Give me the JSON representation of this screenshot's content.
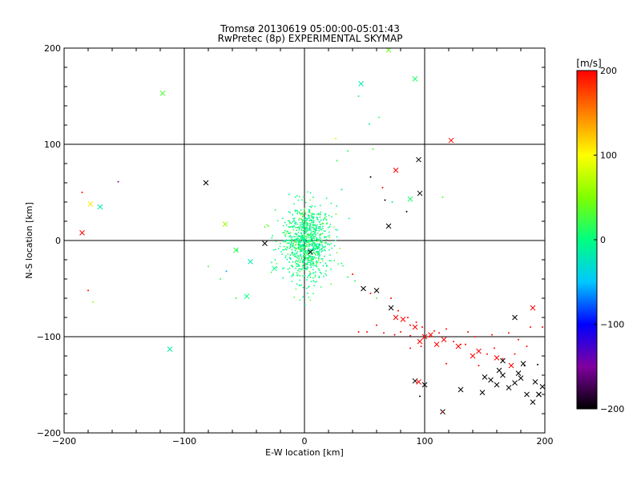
{
  "chart_data": {
    "type": "scatter",
    "title_line1": "Tromsø 20130619 05:00:00-05:01:43",
    "title_line2": "RwPretec (8p) EXPERIMENTAL SKYMAP",
    "xlabel": "E-W location [km]",
    "ylabel": "N-S location [km]",
    "xlim": [
      -200,
      200
    ],
    "ylim": [
      -200,
      200
    ],
    "xticks": [
      -200,
      -100,
      0,
      100,
      200
    ],
    "yticks": [
      -200,
      -100,
      0,
      100,
      200
    ],
    "xtick_labels": [
      "−200",
      "−100",
      "0",
      "100",
      "200"
    ],
    "ytick_labels": [
      "−200",
      "−100",
      "0",
      "100",
      "200"
    ],
    "grid": true,
    "colorbar": {
      "label": "[m/s]",
      "range": [
        -200,
        200
      ],
      "ticks": [
        200,
        100,
        0,
        -100,
        -200
      ],
      "tick_labels": [
        "200",
        "100",
        "0",
        "−100",
        "−200"
      ],
      "colors": [
        "#000000",
        "#8000a0",
        "#0000ff",
        "#00c8ff",
        "#00ff80",
        "#80ff00",
        "#ffff00",
        "#ff8000",
        "#ff0000"
      ]
    },
    "series": [
      {
        "marker": "x",
        "x": [
          -118,
          47,
          70,
          92,
          122,
          -185,
          -170,
          -178,
          -82,
          -112,
          -66,
          -45,
          -33,
          -57,
          -48,
          -25,
          5,
          76,
          96,
          95,
          70,
          88,
          49,
          60,
          72,
          76,
          82,
          92,
          100,
          96,
          110,
          128,
          145,
          160,
          172,
          192,
          105,
          116,
          140,
          165,
          182,
          198,
          150,
          155,
          160,
          165,
          170,
          175,
          180,
          185,
          190,
          195,
          175,
          190,
          92,
          95,
          115,
          100,
          130,
          148,
          162,
          178,
          195
        ],
        "y": [
          153,
          163,
          198,
          168,
          104,
          8,
          35,
          38,
          60,
          -113,
          17,
          -22,
          -3,
          -10,
          -58,
          -29,
          -12,
          73,
          49,
          84,
          15,
          43,
          -50,
          -52,
          -70,
          -80,
          -82,
          -90,
          -100,
          -105,
          -108,
          -110,
          -115,
          -122,
          -130,
          -147,
          -98,
          -103,
          -120,
          -125,
          -128,
          -152,
          -142,
          -145,
          -150,
          -140,
          -153,
          -148,
          -143,
          -160,
          -168,
          -160,
          -80,
          -70,
          -146,
          -147,
          -178,
          -150,
          -155,
          -158,
          -135,
          -138,
          -160
        ],
        "v": [
          30,
          -20,
          40,
          10,
          200,
          200,
          -20,
          110,
          -200,
          -10,
          60,
          -20,
          -200,
          20,
          0,
          0,
          -200,
          200,
          -200,
          -200,
          -200,
          10,
          -200,
          -200,
          -200,
          200,
          200,
          200,
          200,
          200,
          200,
          200,
          200,
          200,
          200,
          -200,
          200,
          200,
          200,
          -200,
          -200,
          -200,
          -200,
          -200,
          -200,
          -200,
          -200,
          -200,
          -200,
          -200,
          -200,
          -200,
          -200,
          200,
          -200,
          200,
          -200,
          -200,
          -200,
          -200,
          -200,
          -200,
          -200
        ]
      },
      {
        "marker": "dot",
        "x": [
          -185,
          -155,
          -180,
          -176,
          45,
          54,
          62,
          57,
          36,
          26,
          31,
          27,
          55,
          65,
          67,
          73,
          85,
          115,
          -80,
          -70,
          -65,
          -57,
          -56,
          -33,
          -30,
          40,
          36,
          42,
          55,
          60,
          72,
          78,
          86,
          88,
          93,
          98,
          104,
          108,
          112,
          118,
          124,
          134,
          142,
          152,
          158,
          165,
          175,
          183,
          194,
          198,
          97,
          88,
          118,
          130,
          145,
          170,
          185,
          45,
          52,
          60,
          66,
          75,
          80,
          88,
          136,
          156,
          178,
          188,
          96,
          115
        ],
        "y": [
          50,
          61,
          -52,
          -64,
          150,
          121,
          128,
          95,
          93,
          106,
          53,
          83,
          66,
          55,
          42,
          40,
          30,
          45,
          -27,
          -40,
          -32,
          -60,
          -10,
          14,
          15,
          -35,
          -38,
          -42,
          -55,
          -60,
          -60,
          -73,
          -80,
          -88,
          -85,
          -90,
          -100,
          -94,
          -96,
          -92,
          -105,
          -108,
          -100,
          -118,
          -112,
          -123,
          -118,
          -130,
          -129,
          -90,
          -110,
          -112,
          -128,
          -108,
          -130,
          -96,
          -110,
          -95,
          -95,
          -88,
          -96,
          -98,
          -95,
          -99,
          -95,
          -98,
          -103,
          -90,
          -162,
          -178
        ],
        "v": [
          200,
          -150,
          200,
          60,
          10,
          0,
          20,
          30,
          10,
          80,
          -20,
          20,
          -200,
          200,
          -200,
          -20,
          -200,
          30,
          20,
          10,
          -60,
          20,
          0,
          30,
          40,
          200,
          20,
          10,
          200,
          30,
          200,
          200,
          200,
          200,
          200,
          200,
          200,
          200,
          200,
          200,
          200,
          200,
          200,
          200,
          200,
          200,
          200,
          -200,
          -200,
          200,
          200,
          200,
          200,
          200,
          200,
          200,
          200,
          200,
          200,
          200,
          200,
          200,
          200,
          200,
          200,
          200,
          200,
          200,
          -200,
          200
        ]
      }
    ]
  }
}
